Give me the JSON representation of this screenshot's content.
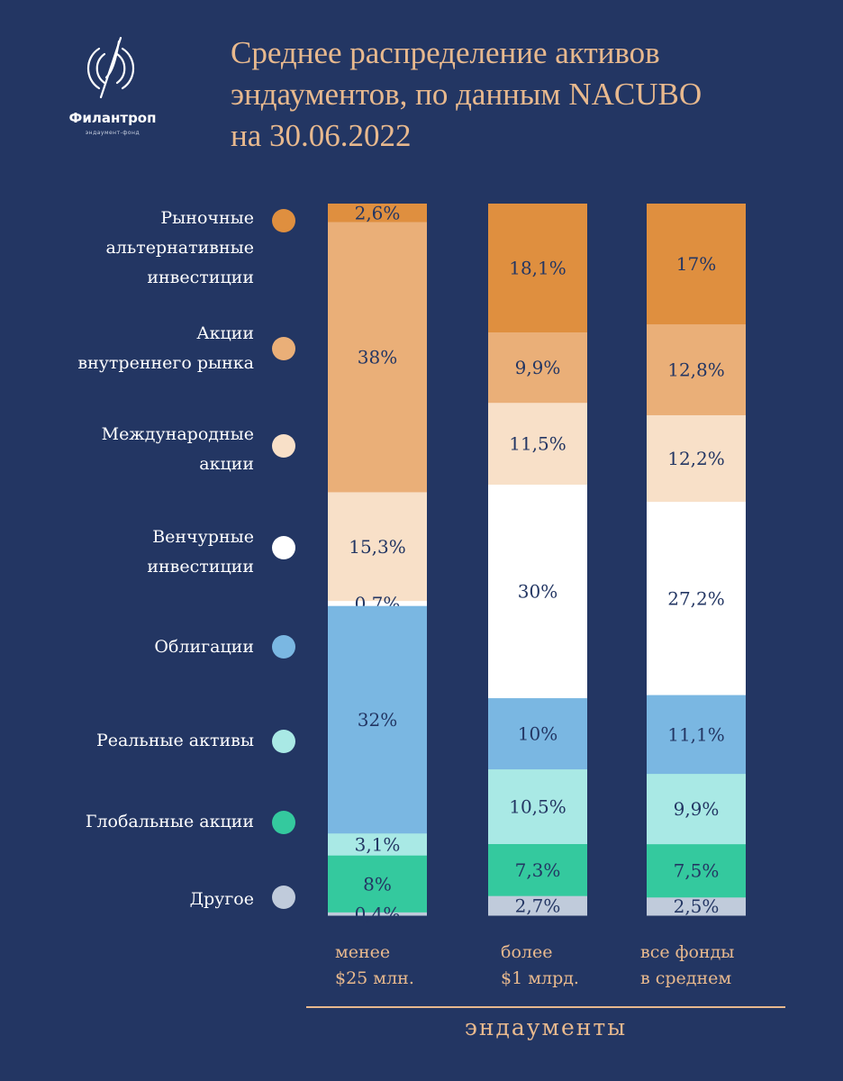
{
  "logo": {
    "name": "Филантроп",
    "subtitle": "эндаумент-фонд"
  },
  "title_lines": [
    "Среднее распределение активов",
    "эндаументов, по данным NACUBO",
    "на 30.06.2022"
  ],
  "colors": {
    "background": "#233663",
    "accent": "#e8b98e"
  },
  "legend": [
    {
      "label": "Рыночные\nальтернативные\nинвестиции",
      "color": "#df8f3f"
    },
    {
      "label": "Акции\nвнутреннего рынка",
      "color": "#eaaf78"
    },
    {
      "label": "Международные\nакции",
      "color": "#f8e0c8"
    },
    {
      "label": "Венчурные\nинвестиции",
      "color": "#ffffff"
    },
    {
      "label": "Облигации",
      "color": "#7ab7e2"
    },
    {
      "label": "Реальные активы",
      "color": "#a9e9e5"
    },
    {
      "label": "Глобальные акции",
      "color": "#34c99e"
    },
    {
      "label": "Другое",
      "color": "#c0cbdb"
    }
  ],
  "chart_data": {
    "type": "bar",
    "stacked": true,
    "categories": [
      "менее\n$25 млн.",
      "более\n$1 млрд.",
      "все фонды\nв среднем"
    ],
    "xlabel": "эндаументы",
    "ylabel": "",
    "ylim": [
      0,
      100
    ],
    "series": [
      {
        "name": "Рыночные альтернативные инвестиции",
        "values": [
          2.6,
          18.1,
          17.0
        ],
        "labels": [
          "2,6%",
          "18,1%",
          "17%"
        ]
      },
      {
        "name": "Акции внутреннего рынка",
        "values": [
          38.0,
          9.9,
          12.8
        ],
        "labels": [
          "38%",
          "9,9%",
          "12,8%"
        ]
      },
      {
        "name": "Международные акции",
        "values": [
          15.3,
          11.5,
          12.2
        ],
        "labels": [
          "15,3%",
          "11,5%",
          "12,2%"
        ]
      },
      {
        "name": "Венчурные инвестиции",
        "values": [
          0.7,
          30.0,
          27.2
        ],
        "labels": [
          "0,7%",
          "30%",
          "27,2%"
        ]
      },
      {
        "name": "Облигации",
        "values": [
          32.0,
          10.0,
          11.1
        ],
        "labels": [
          "32%",
          "10%",
          "11,1%"
        ]
      },
      {
        "name": "Реальные активы",
        "values": [
          3.1,
          10.5,
          9.9
        ],
        "labels": [
          "3,1%",
          "10,5%",
          "9,9%"
        ]
      },
      {
        "name": "Глобальные акции",
        "values": [
          8.0,
          7.3,
          7.5
        ],
        "labels": [
          "8%",
          "7,3%",
          "7,5%"
        ]
      },
      {
        "name": "Другое",
        "values": [
          0.4,
          2.7,
          2.5
        ],
        "labels": [
          "0,4%",
          "2,7%",
          "2,5%"
        ]
      }
    ]
  }
}
